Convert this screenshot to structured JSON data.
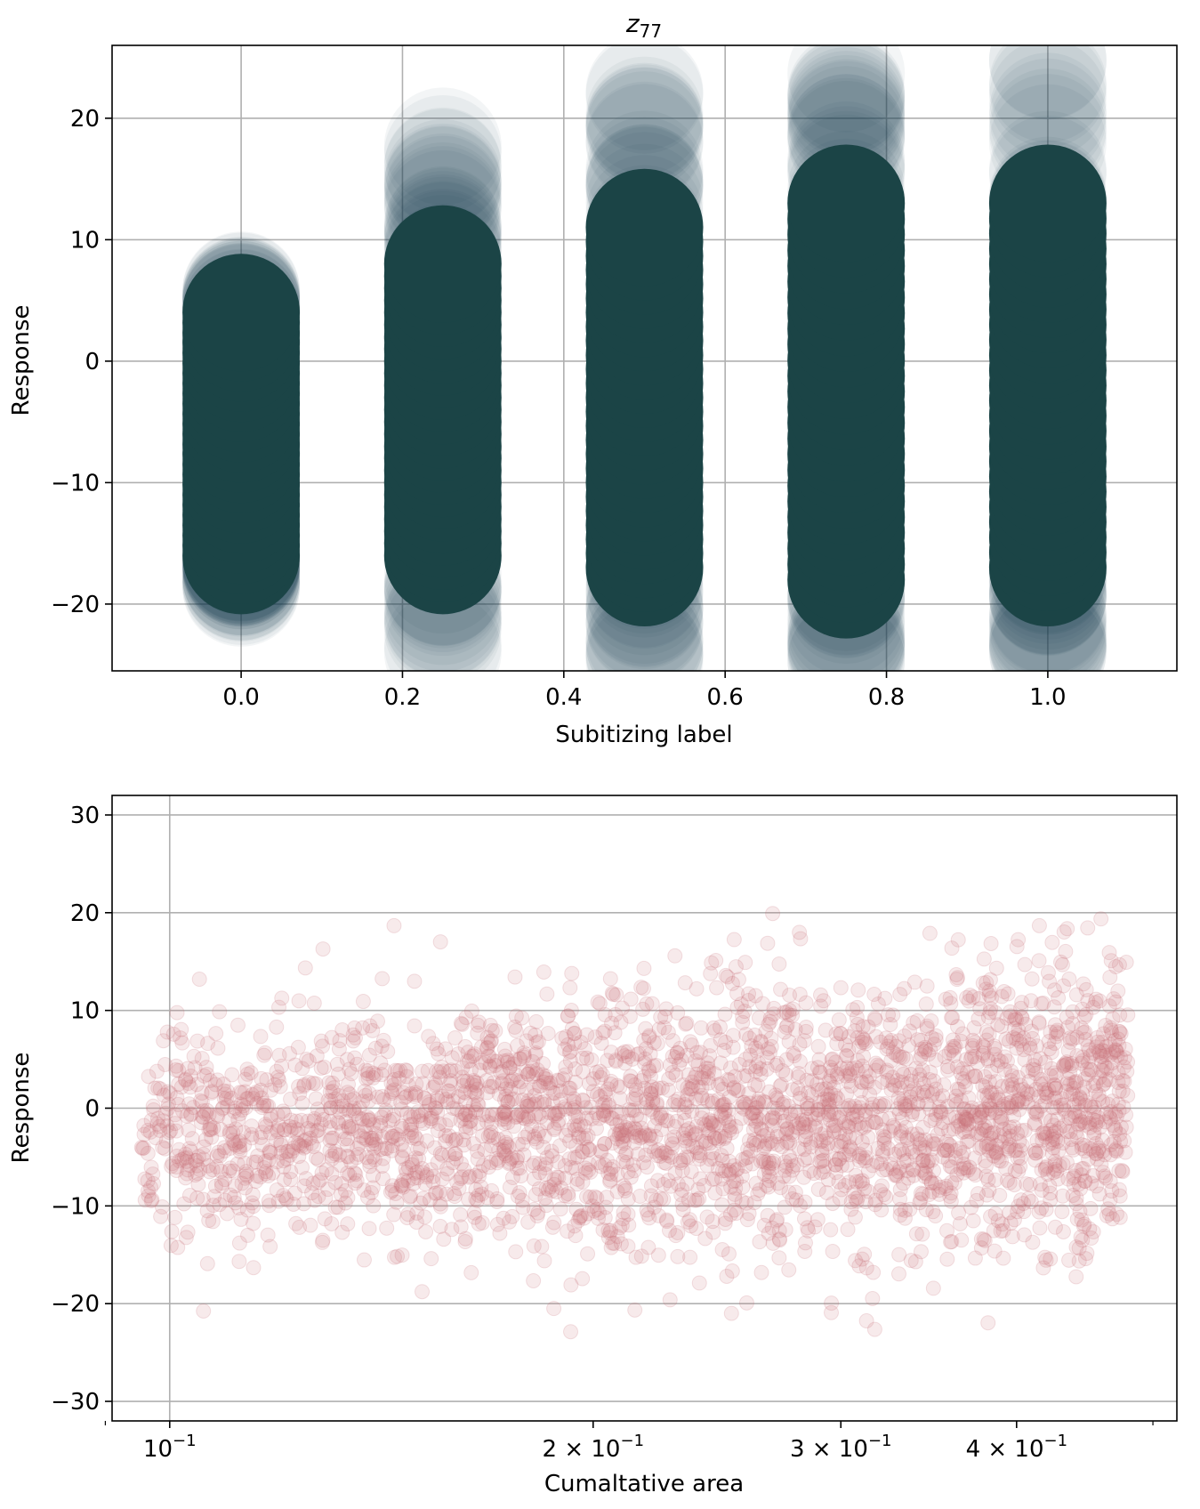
{
  "chart_data": [
    {
      "type": "scatter",
      "title": "z",
      "title_subscript": "77",
      "xlabel": "Subitizing label",
      "ylabel": "Response",
      "xlim": [
        -0.16,
        1.16
      ],
      "ylim": [
        -25.5,
        26
      ],
      "x_ticks": [
        0.0,
        0.2,
        0.4,
        0.6,
        0.8,
        1.0
      ],
      "x_tick_labels": [
        "0.0",
        "0.2",
        "0.4",
        "0.6",
        "0.8",
        "1.0"
      ],
      "y_ticks": [
        20,
        10,
        0,
        -10,
        -20
      ],
      "y_tick_labels": [
        "20",
        "10",
        "0",
        "−10",
        "−20"
      ],
      "grid": true,
      "color": "#1b4446",
      "marker_size_large": true,
      "series": [
        {
          "x": 0.0,
          "core": [
            -16,
            4
          ],
          "tail": [
            -19,
            6
          ]
        },
        {
          "x": 0.25,
          "core": [
            -16,
            8
          ],
          "tail": [
            -24,
            18
          ]
        },
        {
          "x": 0.5,
          "core": [
            -17,
            11
          ],
          "tail": [
            -25,
            23
          ]
        },
        {
          "x": 0.75,
          "core": [
            -18,
            13
          ],
          "tail": [
            -25,
            24
          ]
        },
        {
          "x": 1.0,
          "core": [
            -17,
            13
          ],
          "tail": [
            -24,
            25
          ]
        }
      ]
    },
    {
      "type": "scatter",
      "title": "",
      "xlabel": "Cumaltative area",
      "ylabel": "Response",
      "x_scale": "log",
      "xlim": [
        0.091,
        0.52
      ],
      "ylim": [
        -32,
        32
      ],
      "x_ticks": [
        0.1,
        0.2,
        0.3,
        0.4
      ],
      "x_tick_labels": [
        {
          "base": "10",
          "exp": "−1"
        },
        {
          "base": "2 × 10",
          "exp": "−1"
        },
        {
          "base": "3 × 10",
          "exp": "−1"
        },
        {
          "base": "4 × 10",
          "exp": "−1"
        }
      ],
      "x_minor_ticks": [
        0.09,
        0.5
      ],
      "y_ticks": [
        30,
        20,
        10,
        0,
        -10,
        -20,
        -30
      ],
      "y_tick_labels": [
        "30",
        "20",
        "10",
        "0",
        "−10",
        "−20",
        "−30"
      ],
      "grid": true,
      "color": "#c9707a",
      "x_range": [
        0.095,
        0.48
      ],
      "y_spread_left": 7,
      "y_spread_right": 10,
      "mean_left": -3,
      "mean_right": 0
    }
  ]
}
